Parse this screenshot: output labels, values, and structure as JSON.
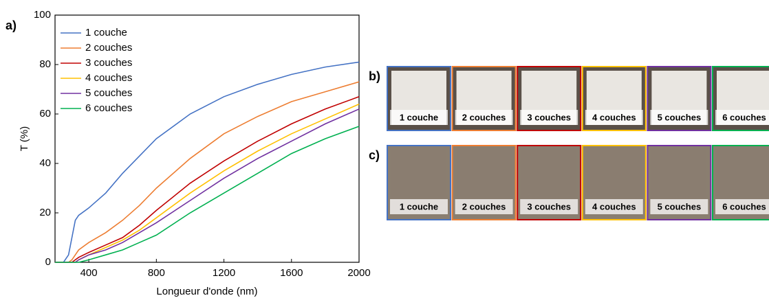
{
  "chart_data": {
    "type": "line",
    "panel_label": "a)",
    "x_label": "Longueur d'onde (nm)",
    "y_label": "T (%)",
    "x": [
      200,
      250,
      280,
      300,
      320,
      340,
      400,
      500,
      600,
      700,
      800,
      1000,
      1200,
      1400,
      1600,
      1800,
      2000
    ],
    "series": [
      {
        "name": "1 couche",
        "color": "#4472c4",
        "values": [
          0,
          0,
          3,
          10,
          17,
          19,
          22,
          28,
          36,
          43,
          50,
          60,
          67,
          72,
          76,
          79,
          81
        ]
      },
      {
        "name": "2 couches",
        "color": "#ed7d31",
        "values": [
          0,
          0,
          0,
          1,
          3,
          5,
          8,
          12,
          17,
          23,
          30,
          42,
          52,
          59,
          65,
          69,
          73
        ]
      },
      {
        "name": "3 couches",
        "color": "#c00000",
        "values": [
          0,
          0,
          0,
          0,
          1,
          2,
          4,
          7,
          10,
          15,
          21,
          32,
          41,
          49,
          56,
          62,
          67
        ]
      },
      {
        "name": "4 couches",
        "color": "#ffc000",
        "values": [
          0,
          0,
          0,
          0,
          0,
          1,
          3,
          6,
          9,
          13,
          18,
          28,
          37,
          45,
          52,
          58,
          64
        ]
      },
      {
        "name": "5 couches",
        "color": "#7030a0",
        "values": [
          0,
          0,
          0,
          0,
          0,
          1,
          3,
          5,
          8,
          12,
          16,
          25,
          34,
          42,
          49,
          56,
          62
        ]
      },
      {
        "name": "6 couches",
        "color": "#00b050",
        "values": [
          0,
          0,
          0,
          0,
          0,
          0,
          1,
          3,
          5,
          8,
          11,
          20,
          28,
          36,
          44,
          50,
          55
        ]
      }
    ],
    "xlim": [
      200,
      2000
    ],
    "xticks": [
      400,
      800,
      1200,
      1600,
      2000
    ],
    "ylim": [
      0,
      100
    ],
    "yticks": [
      0,
      20,
      40,
      60,
      80,
      100
    ],
    "grid": false,
    "legend": "top-left"
  },
  "panels": [
    {
      "label": "b)",
      "captions": [
        "1 couche",
        "2 couches",
        "3 couches",
        "4 couches",
        "5 couches",
        "6 couches"
      ]
    },
    {
      "label": "c)",
      "captions": [
        "1 couche",
        "2 couches",
        "3 couches",
        "4 couches",
        "5 couches",
        "6 couches"
      ]
    }
  ]
}
